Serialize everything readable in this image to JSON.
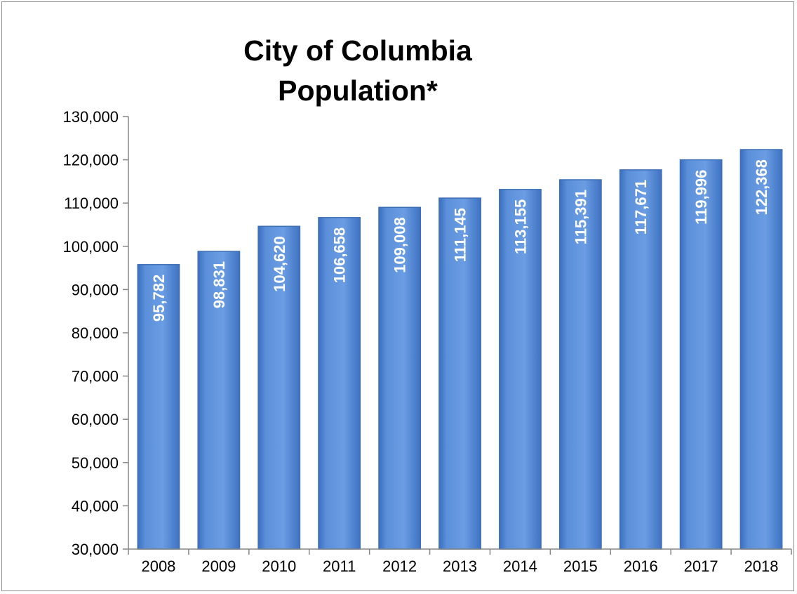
{
  "chart_data": {
    "type": "bar",
    "title": "City of Columbia\nPopulation*",
    "categories": [
      "2008",
      "2009",
      "2010",
      "2011",
      "2012",
      "2013",
      "2014",
      "2015",
      "2016",
      "2017",
      "2018"
    ],
    "values": [
      95782,
      98831,
      104620,
      106658,
      109008,
      111145,
      113155,
      115391,
      117671,
      119996,
      122368
    ],
    "data_labels": [
      "95,782",
      "98,831",
      "104,620",
      "106,658",
      "109,008",
      "111,145",
      "113,155",
      "115,391",
      "117,671",
      "119,996",
      "122,368"
    ],
    "yticks": [
      "30,000",
      "40,000",
      "50,000",
      "60,000",
      "70,000",
      "80,000",
      "90,000",
      "100,000",
      "110,000",
      "120,000",
      "130,000"
    ],
    "ylim": [
      30000,
      130000
    ],
    "ytick_step": 10000,
    "xlabel": "",
    "ylabel": "",
    "grid": false,
    "legend": "none",
    "bar_color": "#5b8fd9",
    "bar_edge_color": "#3f6fb5"
  }
}
